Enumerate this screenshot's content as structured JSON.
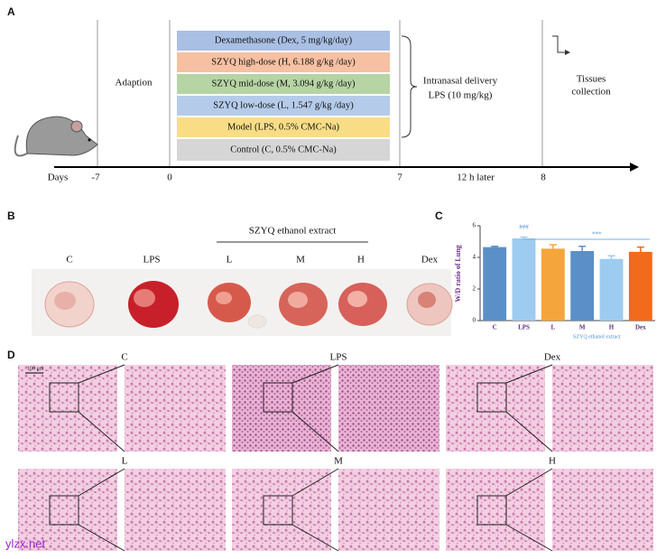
{
  "panel_a": {
    "label": "A",
    "days_label": "Days",
    "days": [
      "-7",
      "0",
      "7",
      "8"
    ],
    "later": "12 h later",
    "adaption": "Adaption",
    "groups": [
      "Dexamethasone (Dex, 5 mg/kg/day)",
      "SZYQ high-dose (H, 6.188 g/kg /day)",
      "SZYQ mid-dose (M, 3.094 g/kg /day)",
      "SZYQ low-dose (L, 1.547 g/kg /day)",
      "Model (LPS, 0.5% CMC-Na)",
      "Control (C, 0.5% CMC-Na)"
    ],
    "delivery": [
      "Intranasal delivery",
      "LPS (10 mg/kg)"
    ],
    "collection": [
      "Tissues",
      "collection"
    ]
  },
  "panel_b": {
    "label": "B",
    "groups": [
      "C",
      "LPS",
      "L",
      "M",
      "H",
      "Dex"
    ],
    "extract": "SZYQ ethanol extract"
  },
  "chart_data": {
    "type": "bar",
    "panel_label": "C",
    "ylabel": "W/D ratio of Lung",
    "categories": [
      "C",
      "LPS",
      "L",
      "M",
      "H",
      "Dex"
    ],
    "values": [
      4.65,
      5.2,
      4.55,
      4.4,
      3.9,
      4.35
    ],
    "errors": [
      0.05,
      0.08,
      0.25,
      0.3,
      0.2,
      0.3
    ],
    "colors": [
      "#5b8fc7",
      "#9ecbf0",
      "#f4a53b",
      "#5b8fc7",
      "#9ecbf0",
      "#f26a1b"
    ],
    "ylim": [
      0,
      6
    ],
    "yticks": [
      0,
      2,
      4,
      6
    ],
    "sig_lps": "###",
    "sig_treat": "***",
    "group_label": "SZYQ ethanol extract"
  },
  "panel_d": {
    "label": "D",
    "scale": "100 μm",
    "rows": [
      [
        "C",
        "LPS",
        "Dex"
      ],
      [
        "L",
        "M",
        "H"
      ]
    ]
  },
  "watermark": "ylzx.net"
}
